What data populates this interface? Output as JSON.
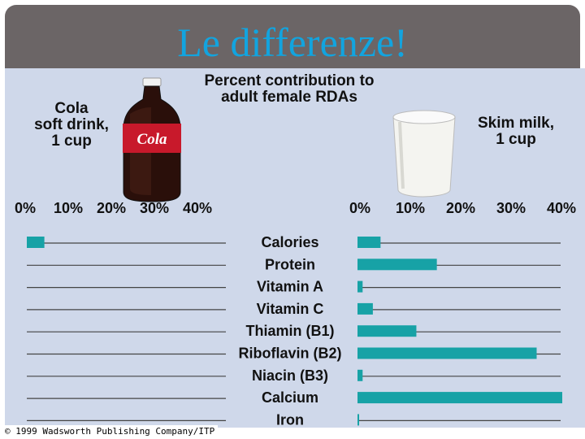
{
  "slide": {
    "title": "Le differenze!"
  },
  "figure": {
    "heading_line1": "Percent contribution to",
    "heading_line2": "adult female RDAs",
    "left_label_line1": "Cola",
    "left_label_line2": "soft drink,",
    "left_label_line3": "1 cup",
    "right_label_line1": "Skim milk,",
    "right_label_line2": "1 cup",
    "bottle_text": "Cola",
    "copyright": "© 1999 Wadsworth Publishing Company/ITP"
  },
  "chart_data": {
    "type": "bar",
    "orientation": "horizontal",
    "title": "Percent contribution to adult female RDAs",
    "tick_labels": [
      "0%",
      "10%",
      "20%",
      "30%",
      "40%"
    ],
    "xlim": [
      0,
      40
    ],
    "categories": [
      "Calories",
      "Protein",
      "Vitamin A",
      "Vitamin C",
      "Thiamin (B1)",
      "Riboflavin (B2)",
      "Niacin (B3)",
      "Calcium",
      "Iron"
    ],
    "series": [
      {
        "name": "Cola soft drink, 1 cup",
        "values": [
          4.5,
          0,
          0,
          0,
          0,
          0,
          0,
          0,
          0
        ]
      },
      {
        "name": "Skim milk, 1 cup",
        "values": [
          4.5,
          15.5,
          1,
          3,
          11.5,
          35,
          1,
          40,
          0.3
        ]
      }
    ],
    "bar_color": "#17a2a6"
  }
}
